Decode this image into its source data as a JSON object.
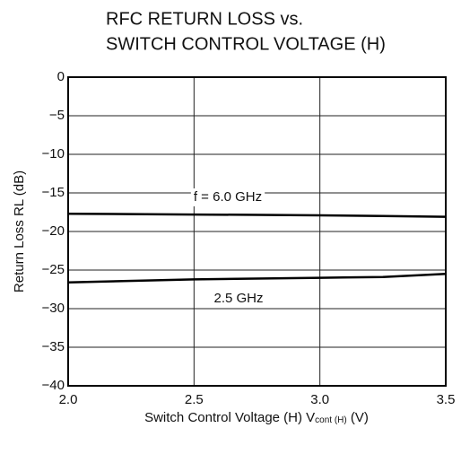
{
  "chart_data": {
    "type": "line",
    "title": [
      "RFC  RETURN LOSS vs.",
      "SWITCH CONTROL VOLTAGE (H)"
    ],
    "xlabel": [
      "Switch Control Voltage (H)  V",
      "cont (H)",
      " (V)"
    ],
    "ylabel": "Return Loss  RL (dB)",
    "x": [
      2.0,
      2.5,
      3.0,
      3.25,
      3.5
    ],
    "series": [
      {
        "name": "f = 6.0 GHz",
        "color": "#000000",
        "values": [
          -17.7,
          -17.8,
          -17.9,
          -18.0,
          -18.1
        ]
      },
      {
        "name": "2.5 GHz",
        "color": "#000000",
        "values": [
          -26.6,
          -26.2,
          -26.0,
          -25.9,
          -25.5
        ]
      }
    ],
    "xlim": [
      2.0,
      3.5
    ],
    "xticks": [
      {
        "value": 2.0,
        "label": "2.0"
      },
      2.5,
      {
        "value": 3.0,
        "label": "3.0"
      },
      3.5
    ],
    "ylim": [
      -40,
      0
    ],
    "yticks": [
      {
        "value": -40,
        "label": "−40"
      },
      {
        "value": -35,
        "label": "−35"
      },
      {
        "value": -30,
        "label": "−30"
      },
      {
        "value": -25,
        "label": "−25"
      },
      {
        "value": -20,
        "label": "−20"
      },
      {
        "value": -15,
        "label": "−15"
      },
      {
        "value": -10,
        "label": "−10"
      },
      {
        "value": -5,
        "label": "−5"
      },
      0
    ],
    "grid": true
  }
}
